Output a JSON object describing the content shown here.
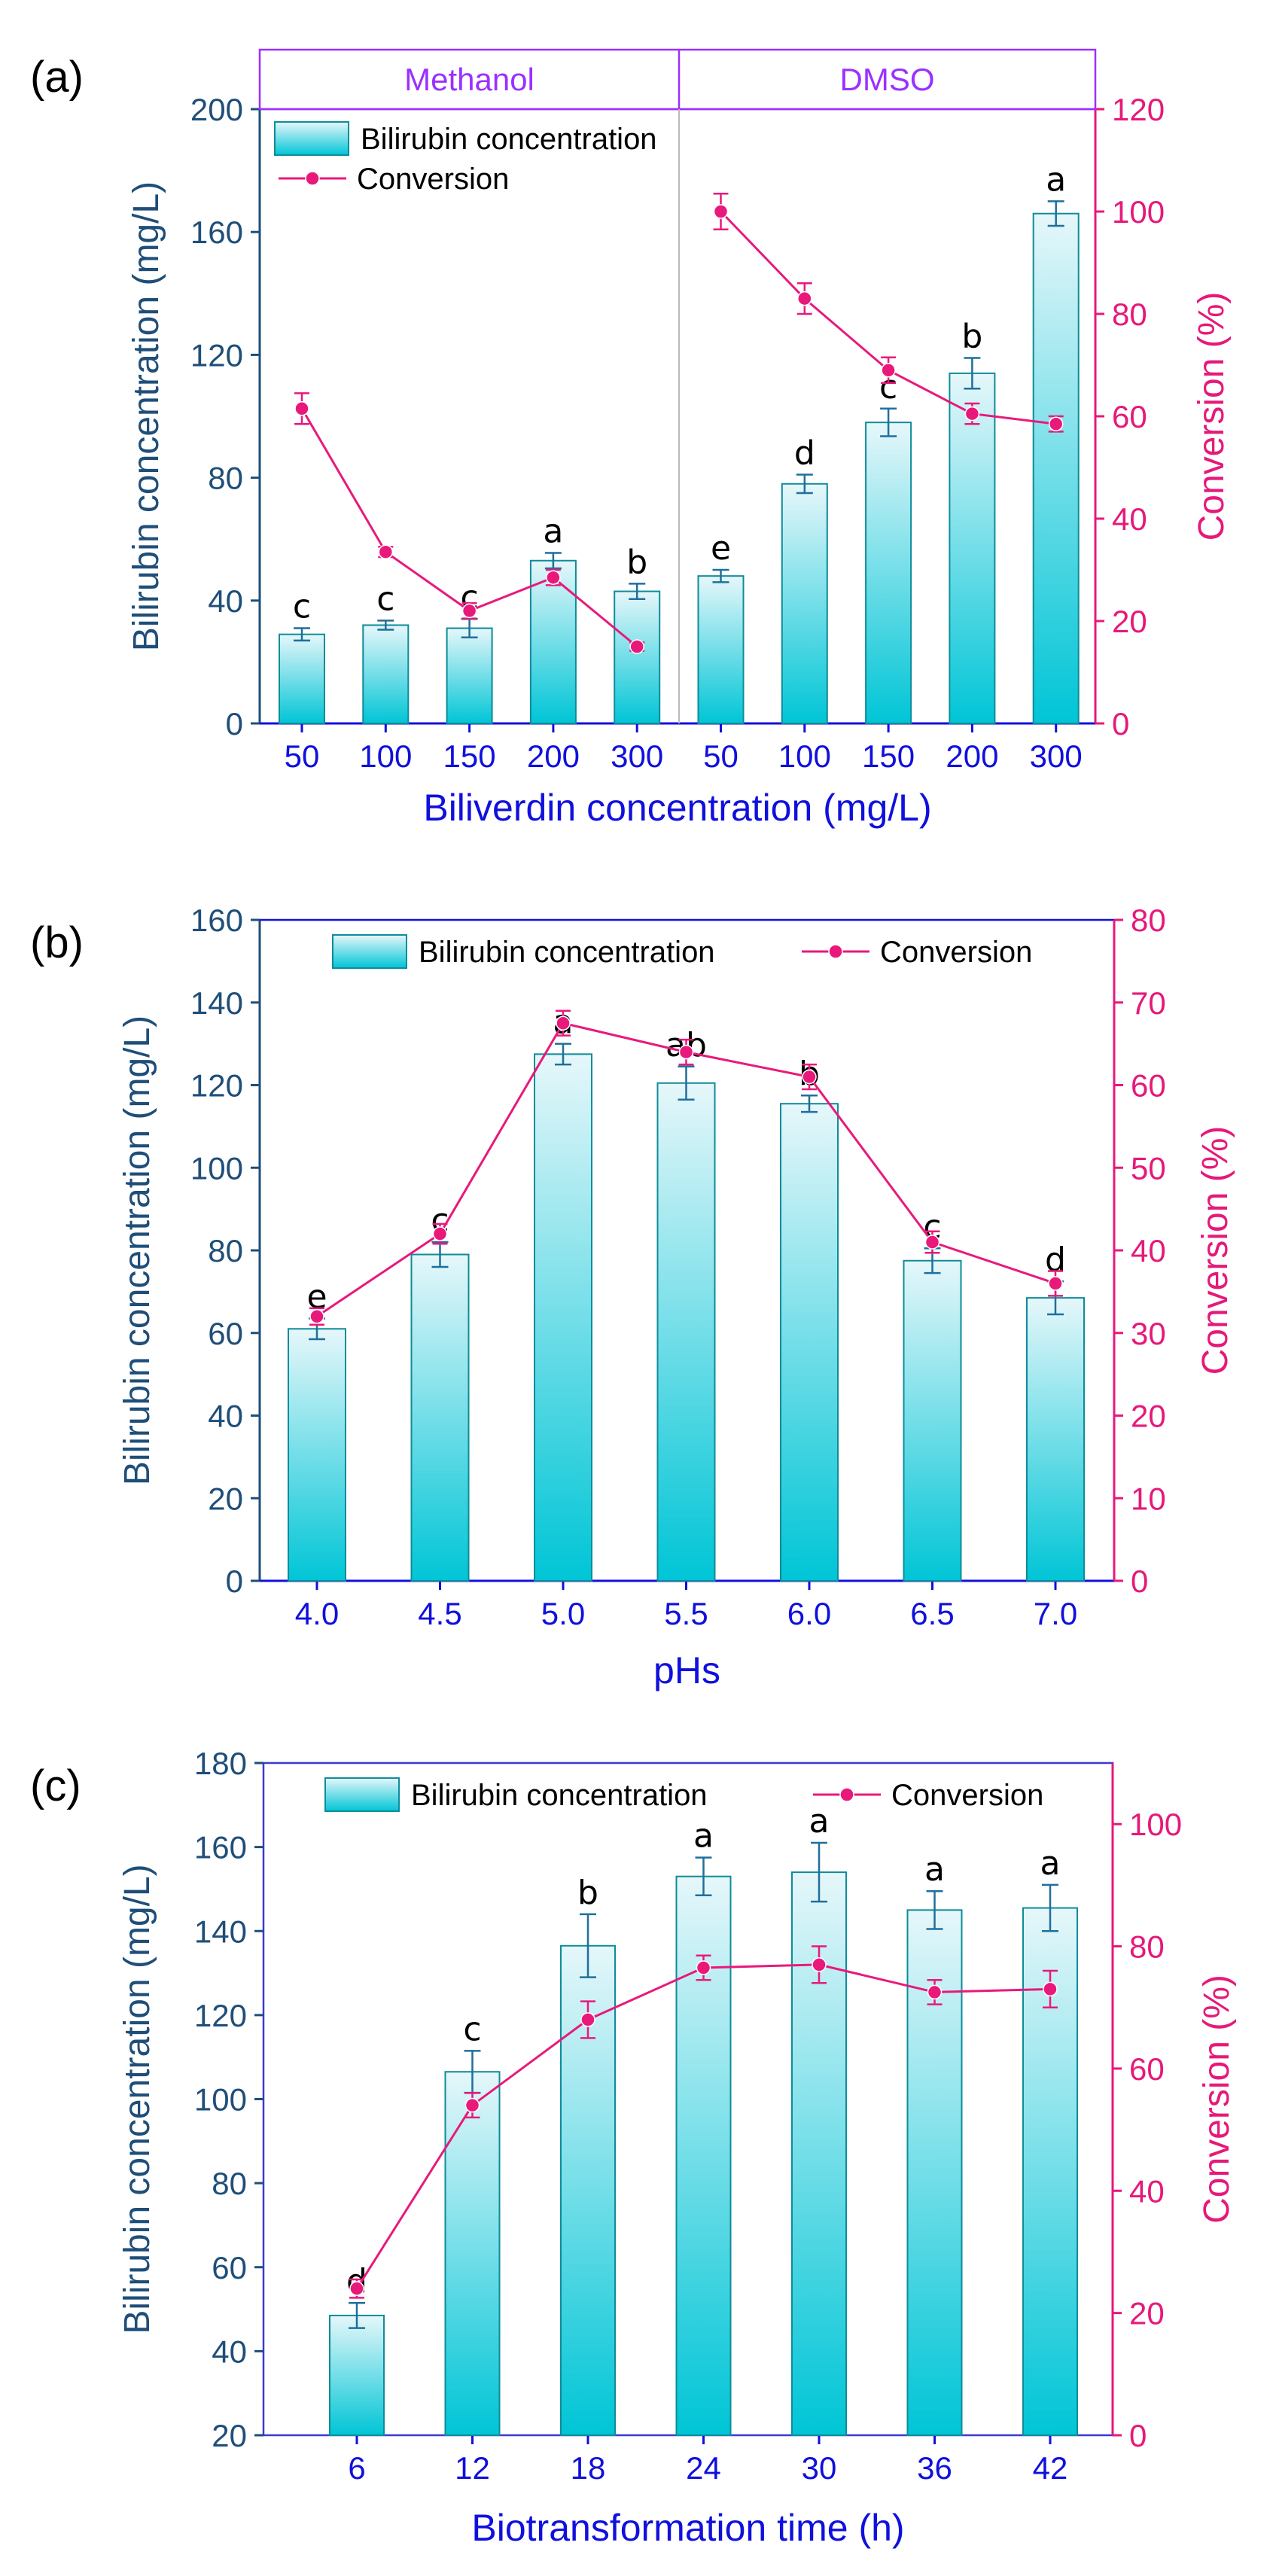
{
  "colors": {
    "left_axis": "#1F4E79",
    "right_axis": "#E6197A",
    "tick_label": "#1010DD",
    "top_label": "#9B30FF",
    "bar_top": "#E6F7FA",
    "bar_bottom": "#00C5D6",
    "bar_edge": "#0E8C9A",
    "error": "#1F6F9C",
    "line": "#E8197B",
    "frame_c": "#3A3ACF",
    "letters": "#000000"
  },
  "chart_data": [
    {
      "type": "bar+line",
      "panel_label": "(a)",
      "groups": [
        "Methanol",
        "DMSO"
      ],
      "categories": [
        "50",
        "100",
        "150",
        "200",
        "300",
        "50",
        "100",
        "150",
        "200",
        "300"
      ],
      "xlabel": "Biliverdin concentration (mg/L)",
      "ylabel": "Bilirubin concentration (mg/L)",
      "y2label": "Conversion (%)",
      "ylim": [
        0,
        200
      ],
      "yticks": [
        "0",
        "40",
        "80",
        "120",
        "160",
        "200"
      ],
      "y2lim": [
        0,
        120
      ],
      "y2ticks": [
        "0",
        "20",
        "40",
        "60",
        "80",
        "100",
        "120"
      ],
      "series": [
        {
          "name": "Bilirubin concentration",
          "kind": "bar",
          "axis": "left",
          "values": [
            29,
            32,
            31,
            53,
            43,
            48,
            78,
            98,
            114,
            166
          ],
          "errors": [
            2,
            1.5,
            3,
            2.5,
            2.5,
            2,
            3,
            4.5,
            5,
            4
          ]
        },
        {
          "name": "Conversion",
          "kind": "line",
          "axis": "right",
          "values": [
            61.5,
            33.5,
            22,
            28.5,
            15,
            100,
            83,
            69,
            60.5,
            58.5
          ],
          "errors": [
            3,
            1,
            1.5,
            1.5,
            0.8,
            3.5,
            3,
            2.5,
            2,
            1.5
          ]
        }
      ],
      "line_segments": [
        [
          0,
          4
        ],
        [
          5,
          9
        ]
      ],
      "letters": [
        "c",
        "c",
        "c",
        "a",
        "b",
        "e",
        "d",
        "c",
        "b",
        "a"
      ],
      "legend": [
        "Bilirubin concentration",
        "Conversion"
      ],
      "legend_position": "top-left"
    },
    {
      "type": "bar+line",
      "panel_label": "(b)",
      "categories": [
        "4.0",
        "4.5",
        "5.0",
        "5.5",
        "6.0",
        "6.5",
        "7.0"
      ],
      "xlabel": "pHs",
      "ylabel": "Bilirubin concentration (mg/L)",
      "y2label": "Conversion (%)",
      "ylim": [
        0,
        160
      ],
      "yticks": [
        "0",
        "20",
        "40",
        "60",
        "80",
        "100",
        "120",
        "140",
        "160"
      ],
      "y2lim": [
        0,
        80
      ],
      "y2ticks": [
        "0",
        "10",
        "20",
        "30",
        "40",
        "50",
        "60",
        "70",
        "80"
      ],
      "series": [
        {
          "name": "Bilirubin concentration",
          "kind": "bar",
          "axis": "left",
          "values": [
            61,
            79,
            127.5,
            120.5,
            115.5,
            77.5,
            68.5
          ],
          "errors": [
            2.5,
            3,
            2.5,
            4,
            2,
            3,
            4
          ]
        },
        {
          "name": "Conversion",
          "kind": "line",
          "axis": "right",
          "values": [
            32,
            42,
            67.5,
            64,
            61,
            41,
            36
          ],
          "errors": [
            1,
            1.2,
            1.5,
            1.5,
            1.5,
            1.3,
            1.5
          ]
        }
      ],
      "line_segments": [
        [
          0,
          6
        ]
      ],
      "letters": [
        "e",
        "c",
        "a",
        "ab",
        "b",
        "c",
        "d"
      ],
      "legend": [
        "Bilirubin concentration",
        "Conversion"
      ],
      "legend_position": "top-center"
    },
    {
      "type": "bar+line",
      "panel_label": "(c)",
      "categories": [
        "6",
        "12",
        "18",
        "24",
        "30",
        "36",
        "42"
      ],
      "xlabel": "Biotransformation time (h)",
      "ylabel": "Bilirubin  concentration (mg/L)",
      "y2label": "Conversion (%)",
      "ylim": [
        20,
        180
      ],
      "yticks": [
        "20",
        "40",
        "60",
        "80",
        "100",
        "120",
        "140",
        "160",
        "180"
      ],
      "y2lim": [
        0,
        110
      ],
      "y2ticks": [
        "0",
        "20",
        "40",
        "60",
        "80",
        "100"
      ],
      "series": [
        {
          "name": "Bilirubin  concentration",
          "kind": "bar",
          "axis": "left",
          "values": [
            48.5,
            106.5,
            136.5,
            153,
            154,
            145,
            145.5
          ],
          "errors": [
            3,
            5,
            7.5,
            4.5,
            7,
            4.5,
            5.5
          ]
        },
        {
          "name": "Conversion",
          "kind": "line",
          "axis": "right",
          "values": [
            24,
            54,
            68,
            76.5,
            77,
            72.5,
            73
          ],
          "errors": [
            1.5,
            2,
            3,
            2,
            3,
            2,
            3
          ]
        }
      ],
      "line_segments": [
        [
          0,
          6
        ]
      ],
      "letters": [
        "d",
        "c",
        "b",
        "a",
        "a",
        "a",
        "a"
      ],
      "legend": [
        "Bilirubin  concentration",
        "Conversion"
      ],
      "legend_position": "top-center"
    }
  ]
}
